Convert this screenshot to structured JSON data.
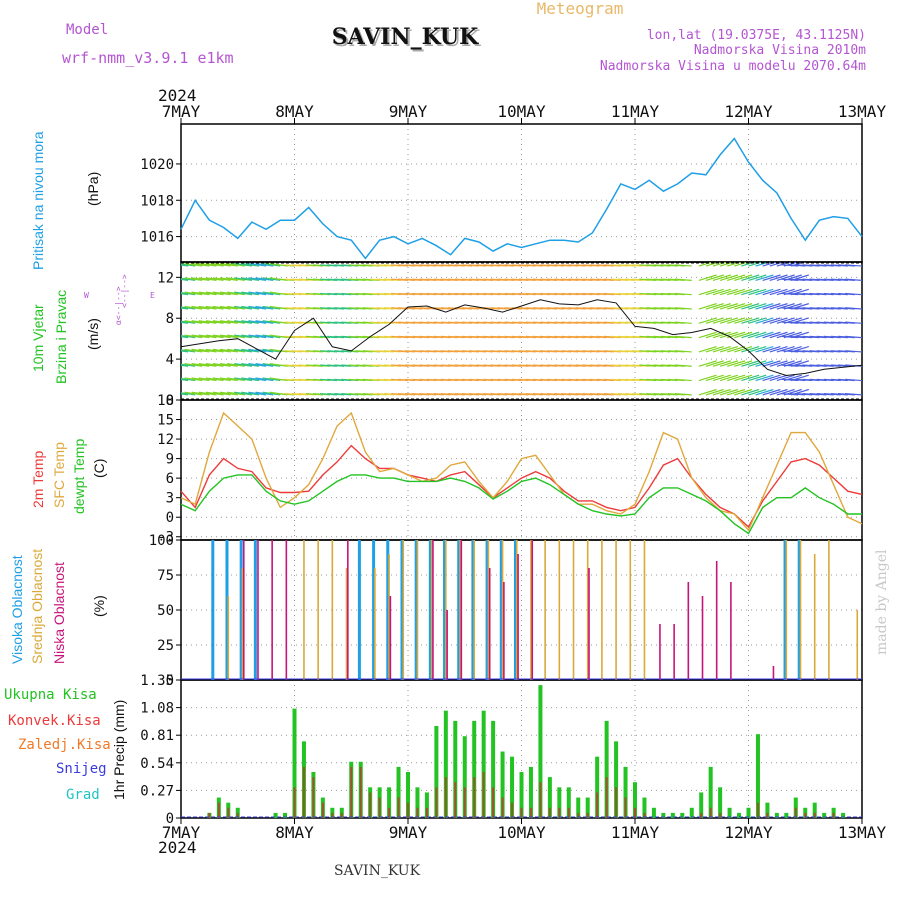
{
  "header": {
    "model_label": "Model",
    "model_name": "wrf-nmm_v3.9.1  e1km",
    "station": "SAVIN_KUK",
    "meteogram": "Meteogram",
    "lonlat": "lon,lat (19.0375E, 43.1125N)",
    "altitude": "Nadmorska Visina 2010m",
    "model_altitude": "Nadmorska Visina u modelu 2070.64m",
    "year_top": "2024",
    "year_bottom": "2024",
    "footer_station": "SAVIN_KUK",
    "credit": "made by Angel"
  },
  "colors": {
    "pressure": "#1e9fe6",
    "title_purple": "#b455d2",
    "meteogram_orange": "#e8b86a",
    "temp2m": "#ee3a3a",
    "sfc": "#e0a83c",
    "dewpt": "#22c322",
    "high_cloud": "#1e9fe6",
    "mid_cloud": "#d9a93a",
    "low_cloud": "#c8147a",
    "total_precip": "#22c322",
    "conv_precip": "#ee3a3a",
    "frozen": "#f07a2a",
    "snow": "#3b3be0",
    "hail": "#22c3c3"
  },
  "x_axis": {
    "dates": [
      "7MAY",
      "8MAY",
      "9MAY",
      "10MAY",
      "11MAY",
      "12MAY",
      "13MAY"
    ]
  },
  "panels": {
    "pressure": {
      "ylabel_side": "Pritisak na nivou mora",
      "unit": "(hPa)",
      "ticks": [
        "1016",
        "1018",
        "1020"
      ]
    },
    "wind": {
      "ylabel1": "10m Vjetar",
      "ylabel2": "Brzina i Pravac",
      "unit": "(m/s)",
      "ticks": [
        "0",
        "4",
        "8",
        "12"
      ],
      "compass_w": "W",
      "compass_e": "E",
      "compass_row1": "<--|-->",
      "compass_row2": "α<--|-->"
    },
    "temp": {
      "label_2m": "2m Temp",
      "label_sfc": "SFC Temp",
      "label_dew": "dewpt Temp",
      "unit": "(C)",
      "ticks": [
        "-3",
        "0",
        "3",
        "6",
        "9",
        "12",
        "15",
        "18"
      ]
    },
    "cloud": {
      "label_high": "Visoka Oblacnost",
      "label_mid": "Srednja Oblacnost",
      "label_low": "Niska Oblacnost",
      "unit": "(%)",
      "ticks": [
        "0",
        "25",
        "50",
        "75",
        "100"
      ]
    },
    "precip": {
      "label_total": "Ukupna Kisa",
      "label_conv": "Konvek.Kisa",
      "label_frozen": "Zaledj.Kisa",
      "label_snow": "Snijeg",
      "label_hail": "Grad",
      "ylabel": "1hr Precip (mm)",
      "ticks": [
        "0",
        "0.27",
        "0.54",
        "0.81",
        "1.08",
        "1.35"
      ]
    }
  },
  "chart_data": [
    {
      "type": "line",
      "title": "Pritisak na nivou mora",
      "ylabel": "(hPa)",
      "ylim": [
        1014.6,
        1022.2
      ],
      "x_hours": [
        0,
        3,
        6,
        9,
        12,
        15,
        18,
        21,
        24,
        27,
        30,
        33,
        36,
        39,
        42,
        45,
        48,
        51,
        54,
        57,
        60,
        63,
        66,
        69,
        72,
        75,
        78,
        81,
        84,
        87,
        90,
        93,
        96,
        99,
        102,
        105,
        108,
        111,
        114,
        117,
        120,
        123,
        126,
        129,
        132,
        135,
        138,
        141,
        144
      ],
      "values": [
        1016.4,
        1018.0,
        1016.9,
        1016.5,
        1015.9,
        1016.8,
        1016.4,
        1016.9,
        1016.9,
        1017.6,
        1016.7,
        1016.0,
        1015.8,
        1014.8,
        1015.8,
        1016.0,
        1015.6,
        1015.9,
        1015.5,
        1015.0,
        1015.9,
        1015.7,
        1015.2,
        1015.6,
        1015.4,
        1015.6,
        1015.8,
        1015.8,
        1015.7,
        1016.2,
        1017.5,
        1018.9,
        1018.6,
        1019.1,
        1018.5,
        1018.9,
        1019.5,
        1019.4,
        1020.5,
        1021.4,
        1020.1,
        1019.1,
        1018.4,
        1017.0,
        1015.8,
        1016.9,
        1017.1,
        1017.0,
        1016.0
      ],
      "grid": true
    },
    {
      "type": "line",
      "title": "10m Vjetar Brzina i Pravac",
      "ylabel": "(m/s)",
      "ylim": [
        0,
        13.5
      ],
      "x_hours": [
        0,
        4,
        8,
        12,
        16,
        20,
        24,
        28,
        32,
        36,
        40,
        44,
        48,
        52,
        56,
        60,
        64,
        68,
        72,
        76,
        80,
        84,
        88,
        92,
        96,
        100,
        104,
        108,
        112,
        116,
        120,
        124,
        128,
        132,
        136,
        140,
        144
      ],
      "values": [
        5.2,
        5.5,
        5.8,
        6.0,
        5.0,
        4.0,
        6.8,
        8.0,
        5.2,
        4.8,
        6.2,
        7.4,
        9.1,
        9.2,
        8.6,
        9.3,
        9.0,
        8.6,
        9.2,
        9.8,
        9.4,
        9.3,
        9.8,
        9.5,
        7.2,
        7.0,
        6.4,
        6.6,
        7.0,
        6.2,
        4.8,
        3.0,
        2.4,
        2.6,
        3.0,
        3.2,
        3.4
      ],
      "grid": true
    },
    {
      "type": "line",
      "title": "Temperatures",
      "ylabel": "(C)",
      "ylim": [
        -3.5,
        18
      ],
      "x_hours": [
        0,
        3,
        6,
        9,
        12,
        15,
        18,
        21,
        24,
        27,
        30,
        33,
        36,
        39,
        42,
        45,
        48,
        51,
        54,
        57,
        60,
        63,
        66,
        69,
        72,
        75,
        78,
        81,
        84,
        87,
        90,
        93,
        96,
        99,
        102,
        105,
        108,
        111,
        114,
        117,
        120,
        123,
        126,
        129,
        132,
        135,
        138,
        141,
        144
      ],
      "series": [
        {
          "name": "2m Temp",
          "values": [
            4.0,
            1.5,
            6.5,
            9.0,
            7.5,
            7.0,
            4.5,
            3.8,
            3.8,
            4.0,
            6.5,
            8.5,
            11.0,
            9.0,
            7.5,
            7.5,
            6.5,
            6.0,
            5.5,
            6.5,
            7.0,
            5.0,
            3.0,
            4.5,
            6.0,
            7.0,
            6.0,
            4.0,
            2.5,
            2.5,
            1.5,
            1.0,
            1.5,
            4.5,
            8.0,
            9.0,
            6.0,
            3.5,
            1.5,
            0.5,
            -1.5,
            2.5,
            5.5,
            8.5,
            9.0,
            8.0,
            6.0,
            4.0,
            3.5
          ]
        },
        {
          "name": "SFC Temp",
          "values": [
            3.0,
            2.0,
            10.0,
            16.0,
            14.0,
            12.0,
            6.0,
            1.5,
            3.0,
            5.0,
            9.0,
            14.0,
            16.0,
            10.0,
            7.0,
            7.5,
            6.5,
            5.5,
            6.0,
            8.0,
            8.5,
            5.5,
            3.0,
            5.5,
            9.0,
            9.5,
            6.5,
            3.5,
            2.0,
            2.0,
            1.0,
            0.5,
            2.0,
            7.0,
            13.0,
            12.0,
            6.0,
            3.0,
            1.0,
            0.5,
            -2.0,
            3.0,
            8.0,
            13.0,
            13.0,
            10.0,
            5.0,
            0.0,
            -1.0
          ]
        },
        {
          "name": "dewpt Temp",
          "values": [
            2.0,
            1.0,
            4.0,
            6.0,
            6.5,
            6.5,
            4.0,
            2.5,
            2.0,
            2.5,
            4.0,
            5.5,
            6.5,
            6.5,
            6.0,
            6.0,
            5.5,
            5.5,
            5.5,
            6.0,
            5.5,
            4.5,
            2.8,
            4.0,
            5.5,
            6.0,
            5.0,
            3.5,
            2.0,
            1.0,
            0.5,
            0.2,
            0.5,
            3.0,
            4.5,
            4.5,
            3.5,
            2.5,
            1.0,
            -1.0,
            -2.5,
            1.5,
            3.0,
            3.0,
            4.5,
            3.0,
            2.0,
            0.5,
            0.5
          ]
        }
      ],
      "grid": true
    },
    {
      "type": "bar",
      "title": "Oblacnost",
      "ylabel": "(%)",
      "ylim": [
        0,
        100
      ],
      "x_hours": [
        7,
        10,
        13,
        16,
        19,
        22,
        26,
        29,
        32,
        35,
        38,
        41,
        44,
        47,
        50,
        53,
        56,
        59,
        62,
        65,
        68,
        71,
        74,
        77,
        80,
        83,
        86,
        89,
        92,
        95,
        98,
        101,
        104,
        107,
        110,
        113,
        116,
        119,
        122,
        125,
        128,
        131,
        134,
        137,
        140,
        143
      ],
      "series": [
        {
          "name": "Visoka Oblacnost",
          "values": [
            100,
            100,
            100,
            100,
            0,
            0,
            0,
            0,
            0,
            0,
            100,
            100,
            100,
            100,
            100,
            100,
            100,
            100,
            100,
            100,
            100,
            100,
            0,
            0,
            0,
            0,
            0,
            0,
            0,
            0,
            0,
            0,
            0,
            0,
            0,
            0,
            0,
            0,
            0,
            0,
            100,
            100,
            0,
            0,
            0,
            0
          ]
        },
        {
          "name": "Srednja Oblacnost",
          "values": [
            0,
            60,
            80,
            0,
            0,
            0,
            100,
            100,
            100,
            80,
            0,
            80,
            90,
            100,
            100,
            100,
            100,
            100,
            100,
            100,
            100,
            100,
            100,
            100,
            100,
            100,
            100,
            100,
            100,
            100,
            100,
            0,
            0,
            0,
            0,
            0,
            0,
            0,
            0,
            0,
            100,
            100,
            90,
            100,
            0,
            50
          ]
        },
        {
          "name": "Niska Oblacnost",
          "values": [
            0,
            0,
            100,
            100,
            100,
            100,
            0,
            0,
            0,
            100,
            0,
            0,
            60,
            0,
            0,
            100,
            50,
            100,
            0,
            80,
            70,
            90,
            100,
            0,
            0,
            0,
            80,
            0,
            0,
            0,
            0,
            40,
            40,
            70,
            60,
            85,
            70,
            0,
            0,
            10,
            0,
            0,
            0,
            0,
            0,
            0
          ]
        }
      ],
      "grid": true
    },
    {
      "type": "bar",
      "title": "1hr Precip",
      "ylabel": "1hr Precip (mm)",
      "ylim": [
        0,
        1.35
      ],
      "x_hours": [
        6,
        8,
        10,
        12,
        20,
        22,
        24,
        26,
        28,
        30,
        32,
        34,
        36,
        38,
        40,
        42,
        44,
        46,
        48,
        50,
        52,
        54,
        56,
        58,
        60,
        62,
        64,
        66,
        68,
        70,
        72,
        74,
        76,
        78,
        80,
        82,
        84,
        86,
        88,
        90,
        92,
        94,
        96,
        98,
        100,
        102,
        104,
        106,
        108,
        110,
        112,
        114,
        116,
        118,
        120,
        122,
        124,
        126,
        128,
        130,
        132,
        134,
        136,
        138,
        140
      ],
      "series": [
        {
          "name": "Ukupna Kisa",
          "values": [
            0.05,
            0.2,
            0.15,
            0.1,
            0.05,
            0.05,
            1.07,
            0.75,
            0.45,
            0.2,
            0.1,
            0.1,
            0.55,
            0.55,
            0.3,
            0.3,
            0.3,
            0.5,
            0.45,
            0.3,
            0.25,
            0.9,
            1.05,
            0.95,
            0.8,
            0.95,
            1.05,
            0.95,
            0.65,
            0.6,
            0.45,
            0.5,
            1.3,
            0.4,
            0.3,
            0.3,
            0.2,
            0.2,
            0.6,
            0.95,
            0.75,
            0.5,
            0.35,
            0.2,
            0.1,
            0.05,
            0.05,
            0.05,
            0.1,
            0.25,
            0.5,
            0.3,
            0.1,
            0.05,
            0.1,
            0.82,
            0.15,
            0.05,
            0.05,
            0.2,
            0.1,
            0.15,
            0.05,
            0.1,
            0.05
          ]
        },
        {
          "name": "Konvek.Kisa",
          "values": [
            0.05,
            0.15,
            0.1,
            0.05,
            0.0,
            0.0,
            0.3,
            0.5,
            0.4,
            0.15,
            0.05,
            0.05,
            0.5,
            0.5,
            0.25,
            0.2,
            0.1,
            0.2,
            0.15,
            0.1,
            0.1,
            0.3,
            0.4,
            0.35,
            0.3,
            0.4,
            0.45,
            0.3,
            0.2,
            0.15,
            0.1,
            0.1,
            0.35,
            0.1,
            0.1,
            0.1,
            0.05,
            0.05,
            0.25,
            0.4,
            0.3,
            0.2,
            0.1,
            0.05,
            0.0,
            0.0,
            0.0,
            0.0,
            0.0,
            0.05,
            0.1,
            0.05,
            0.0,
            0.0,
            0.0,
            0.15,
            0.05,
            0.0,
            0.0,
            0.1,
            0.05,
            0.05,
            0.0,
            0.05,
            0.0
          ]
        },
        {
          "name": "Zaledj.Kisa",
          "values": [
            0,
            0,
            0,
            0,
            0,
            0,
            0,
            0,
            0,
            0,
            0,
            0,
            0,
            0,
            0,
            0,
            0,
            0,
            0,
            0,
            0,
            0,
            0,
            0,
            0,
            0,
            0,
            0,
            0,
            0,
            0,
            0,
            0,
            0,
            0,
            0,
            0,
            0,
            0,
            0,
            0,
            0,
            0,
            0,
            0,
            0,
            0,
            0,
            0,
            0,
            0,
            0,
            0,
            0,
            0,
            0,
            0,
            0,
            0,
            0,
            0,
            0,
            0,
            0,
            0
          ]
        },
        {
          "name": "Snijeg",
          "values": [
            0,
            0,
            0,
            0,
            0,
            0,
            0,
            0,
            0,
            0,
            0,
            0,
            0,
            0,
            0,
            0,
            0,
            0,
            0,
            0,
            0,
            0,
            0,
            0,
            0,
            0,
            0,
            0,
            0,
            0,
            0,
            0,
            0,
            0,
            0,
            0,
            0,
            0,
            0,
            0,
            0,
            0,
            0,
            0,
            0,
            0,
            0,
            0,
            0,
            0,
            0,
            0,
            0,
            0,
            0,
            0,
            0,
            0,
            0,
            0,
            0,
            0,
            0,
            0,
            0
          ]
        },
        {
          "name": "Grad",
          "values": [
            0,
            0,
            0,
            0,
            0,
            0,
            0,
            0,
            0,
            0,
            0,
            0,
            0,
            0,
            0,
            0,
            0,
            0,
            0,
            0,
            0,
            0,
            0,
            0,
            0,
            0,
            0,
            0,
            0,
            0,
            0,
            0,
            0,
            0,
            0,
            0,
            0,
            0,
            0,
            0,
            0,
            0,
            0,
            0,
            0,
            0,
            0,
            0,
            0,
            0,
            0,
            0,
            0,
            0,
            0,
            0,
            0,
            0,
            0,
            0,
            0,
            0,
            0,
            0,
            0
          ]
        }
      ],
      "grid": true
    }
  ]
}
